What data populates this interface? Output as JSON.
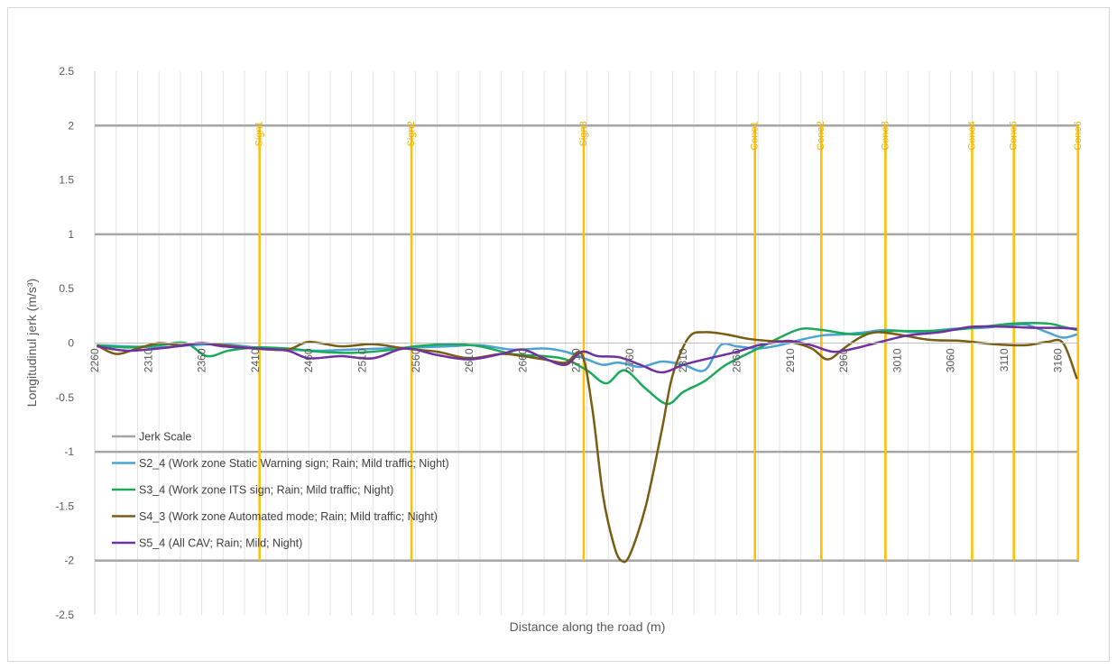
{
  "chart_data": {
    "type": "line",
    "xlabel": "Distance along the road (m)",
    "ylabel": "Longitudinul jerk (m/s³)",
    "xlim": [
      2260,
      3180
    ],
    "ylim": [
      -2.5,
      2.5
    ],
    "y_ticks": [
      2.5,
      2,
      1.5,
      1,
      0.5,
      0,
      -0.5,
      -1,
      -1.5,
      -2,
      -2.5
    ],
    "x_ticks": [
      2260,
      2310,
      2360,
      2410,
      2460,
      2510,
      2560,
      2610,
      2660,
      2710,
      2760,
      2810,
      2860,
      2910,
      2960,
      3010,
      3060,
      3110,
      3160
    ],
    "grid": "vertical",
    "legend_position": "bottom-left",
    "jerk_scale": {
      "name": "Jerk Scale",
      "color": "#a6a6a6",
      "levels": [
        2,
        1,
        -1,
        -2
      ]
    },
    "markers": {
      "color": "#ffc000",
      "items": [
        {
          "label": "Sign1",
          "x": 2414
        },
        {
          "label": "Sign2",
          "x": 2556
        },
        {
          "label": "Sign3",
          "x": 2717
        },
        {
          "label": "Cone1",
          "x": 2877
        },
        {
          "label": "Cone2",
          "x": 2939
        },
        {
          "label": "Cone3",
          "x": 2999
        },
        {
          "label": "Cone4",
          "x": 3080
        },
        {
          "label": "Cone5",
          "x": 3119
        },
        {
          "label": "Cone6",
          "x": 3179
        }
      ]
    },
    "series": [
      {
        "name": "S2_4 (Work zone Static Warning sign; Rain; Mild traffic; Night)",
        "color": "#4ba3d3",
        "x": [
          2262,
          2290,
          2320,
          2350,
          2380,
          2410,
          2440,
          2470,
          2500,
          2530,
          2560,
          2590,
          2620,
          2650,
          2680,
          2700,
          2720,
          2735,
          2750,
          2770,
          2790,
          2810,
          2830,
          2845,
          2860,
          2880,
          2900,
          2920,
          2940,
          2960,
          2980,
          3000,
          3030,
          3060,
          3090,
          3110,
          3130,
          3150,
          3165,
          3178
        ],
        "y": [
          -0.02,
          -0.03,
          -0.04,
          -0.02,
          -0.01,
          -0.04,
          -0.06,
          -0.07,
          -0.06,
          -0.05,
          -0.04,
          -0.03,
          -0.02,
          -0.06,
          -0.05,
          -0.08,
          -0.15,
          -0.2,
          -0.18,
          -0.22,
          -0.17,
          -0.2,
          -0.25,
          -0.02,
          -0.03,
          -0.05,
          -0.02,
          0.03,
          0.07,
          0.08,
          0.1,
          0.12,
          0.1,
          0.13,
          0.14,
          0.16,
          0.17,
          0.1,
          0.05,
          0.08
        ]
      },
      {
        "name": "S3_4 (Work zone ITS sign; Rain; Mild traffic; Night)",
        "color": "#1aaa5a",
        "x": [
          2262,
          2290,
          2320,
          2345,
          2365,
          2385,
          2410,
          2440,
          2470,
          2500,
          2530,
          2560,
          2590,
          2620,
          2650,
          2680,
          2700,
          2720,
          2738,
          2755,
          2775,
          2795,
          2810,
          2830,
          2850,
          2880,
          2900,
          2920,
          2940,
          2970,
          3000,
          3030,
          3060,
          3090,
          3120,
          3150,
          3165,
          3178
        ],
        "y": [
          -0.02,
          -0.04,
          -0.02,
          0.0,
          -0.12,
          -0.07,
          -0.04,
          -0.05,
          -0.08,
          -0.09,
          -0.07,
          -0.03,
          -0.01,
          -0.03,
          -0.1,
          -0.12,
          -0.15,
          -0.25,
          -0.37,
          -0.25,
          -0.42,
          -0.56,
          -0.45,
          -0.35,
          -0.2,
          -0.05,
          0.05,
          0.13,
          0.12,
          0.08,
          0.11,
          0.11,
          0.12,
          0.15,
          0.18,
          0.18,
          0.15,
          0.12
        ]
      },
      {
        "name": "S4_3 (Work zone Automated mode; Rain; Mild traffic; Night)",
        "color": "#7a5c12",
        "x": [
          2262,
          2280,
          2300,
          2320,
          2340,
          2360,
          2380,
          2410,
          2440,
          2460,
          2490,
          2520,
          2550,
          2580,
          2610,
          2640,
          2660,
          2680,
          2700,
          2715,
          2725,
          2735,
          2745,
          2752,
          2760,
          2775,
          2790,
          2800,
          2815,
          2830,
          2850,
          2870,
          2890,
          2910,
          2930,
          2945,
          2960,
          2975,
          2990,
          3010,
          3040,
          3070,
          3100,
          3130,
          3150,
          3165,
          3178
        ],
        "y": [
          -0.02,
          -0.1,
          -0.05,
          0.0,
          -0.02,
          0.0,
          -0.02,
          -0.05,
          -0.06,
          0.01,
          -0.03,
          -0.01,
          -0.05,
          -0.08,
          -0.14,
          -0.1,
          -0.12,
          -0.15,
          -0.18,
          -0.1,
          -0.6,
          -1.4,
          -1.85,
          -2.0,
          -1.95,
          -1.5,
          -0.8,
          -0.3,
          0.05,
          0.1,
          0.08,
          0.04,
          0.02,
          0.01,
          -0.05,
          -0.15,
          -0.05,
          0.05,
          0.1,
          0.08,
          0.03,
          0.02,
          -0.01,
          -0.02,
          0.01,
          0.0,
          -0.33
        ]
      },
      {
        "name": "S5_4 (All CAV; Rain; Mild; Night)",
        "color": "#7030a0",
        "x": [
          2262,
          2290,
          2320,
          2345,
          2360,
          2380,
          2410,
          2440,
          2460,
          2490,
          2520,
          2550,
          2580,
          2610,
          2640,
          2660,
          2680,
          2700,
          2715,
          2730,
          2750,
          2770,
          2790,
          2810,
          2830,
          2860,
          2880,
          2900,
          2910,
          2930,
          2950,
          2970,
          2990,
          3020,
          3050,
          3080,
          3110,
          3140,
          3160,
          3178
        ],
        "y": [
          -0.03,
          -0.07,
          -0.05,
          -0.02,
          0.0,
          -0.03,
          -0.05,
          -0.07,
          -0.14,
          -0.12,
          -0.14,
          -0.05,
          -0.11,
          -0.15,
          -0.1,
          -0.06,
          -0.14,
          -0.2,
          -0.08,
          -0.12,
          -0.13,
          -0.2,
          -0.27,
          -0.2,
          -0.15,
          -0.08,
          -0.02,
          0.01,
          0.02,
          -0.02,
          -0.08,
          -0.05,
          0.0,
          0.07,
          0.1,
          0.15,
          0.15,
          0.14,
          0.14,
          0.13
        ]
      }
    ]
  }
}
